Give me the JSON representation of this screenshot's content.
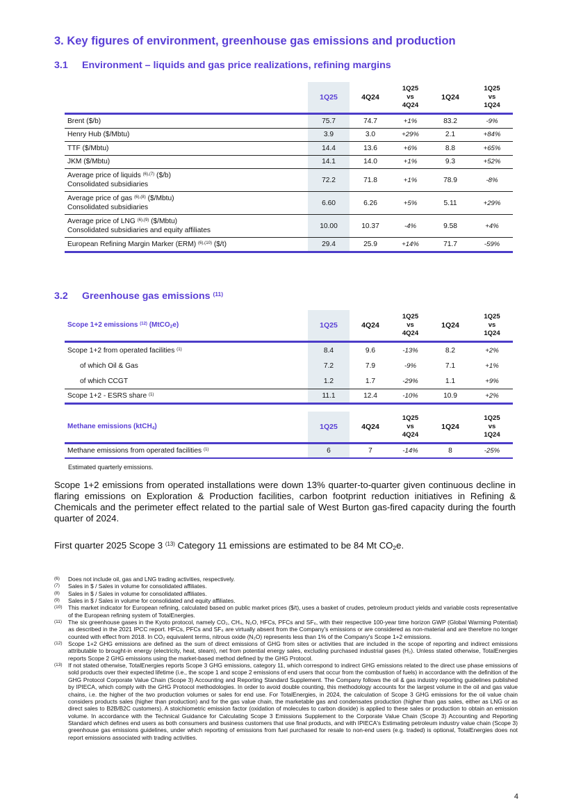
{
  "section3": {
    "title": "3.  Key figures of environment, greenhouse gas emissions and production"
  },
  "section31": {
    "num": "3.1",
    "title": "Environment – liquids and gas price realizations, refining margins"
  },
  "table1": {
    "headers": [
      "1Q25",
      "4Q24",
      "1Q25",
      "vs",
      "4Q24",
      "1Q24",
      "1Q25",
      "vs",
      "1Q24"
    ],
    "rows": [
      {
        "label": "Brent ($/b)",
        "sup": "",
        "unit": "",
        "sub": "",
        "v": [
          "75.7",
          "74.7",
          "+1%",
          "83.2",
          "-9%"
        ]
      },
      {
        "label": "Henry Hub ($/Mbtu)",
        "sup": "",
        "unit": "",
        "sub": "",
        "v": [
          "3.9",
          "3.0",
          "+29%",
          "2.1",
          "+84%"
        ]
      },
      {
        "label": "TTF ($/Mbtu)",
        "sup": "",
        "unit": "",
        "sub": "",
        "v": [
          "14.4",
          "13.6",
          "+6%",
          "8.8",
          "+65%"
        ]
      },
      {
        "label": "JKM ($/Mbtu)",
        "sup": "",
        "unit": "",
        "sub": "",
        "v": [
          "14.1",
          "14.0",
          "+1%",
          "9.3",
          "+52%"
        ]
      },
      {
        "label": "Average price of liquids",
        "sup": "(6),(7)",
        "unit": "($/b)",
        "sub": "Consolidated subsidiaries",
        "v": [
          "72.2",
          "71.8",
          "+1%",
          "78.9",
          "-8%"
        ]
      },
      {
        "label": "Average price of gas",
        "sup": "(6),(8)",
        "unit": "($/Mbtu)",
        "sub": "Consolidated subsidiaries",
        "v": [
          "6.60",
          "6.26",
          "+5%",
          "5.11",
          "+29%"
        ]
      },
      {
        "label": "Average price of LNG",
        "sup": "(6),(9)",
        "unit": "($/Mbtu)",
        "sub": "Consolidated subsidiaries and equity affiliates",
        "v": [
          "10.00",
          "10.37",
          "-4%",
          "9.58",
          "+4%"
        ]
      },
      {
        "label": "European Refining Margin Marker (ERM)",
        "sup": "(6),(10)",
        "unit": "($/t)",
        "sub": "",
        "v": [
          "29.4",
          "25.9",
          "+14%",
          "71.7",
          "-59%"
        ]
      }
    ]
  },
  "section32": {
    "num": "3.2",
    "title": "Greenhouse gas emissions",
    "sup": "(11)"
  },
  "table2": {
    "title": "Scope 1+2 emissions",
    "title_sup": "(12)",
    "title_unit_a": "(MtCO",
    "title_unit_sub": "2",
    "title_unit_b": "e)",
    "headers": [
      "1Q25",
      "4Q24",
      "1Q25",
      "vs",
      "4Q24",
      "1Q24",
      "1Q25",
      "vs",
      "1Q24"
    ],
    "rows": [
      {
        "label": "Scope 1+2 from operated facilities",
        "sup": "(1)",
        "v": [
          "8.4",
          "9.6",
          "-13%",
          "8.2",
          "+2%"
        ]
      },
      {
        "label": "of which Oil & Gas",
        "sup": "",
        "v": [
          "7.2",
          "7.9",
          "-9%",
          "7.1",
          "+1%"
        ]
      },
      {
        "label": "of which CCGT",
        "sup": "",
        "v": [
          "1.2",
          "1.7",
          "-29%",
          "1.1",
          "+9%"
        ]
      },
      {
        "label": "Scope 1+2 - ESRS share",
        "sup": "(1)",
        "v": [
          "11.1",
          "12.4",
          "-10%",
          "10.9",
          "+2%"
        ]
      }
    ]
  },
  "table3": {
    "title_a": "Methane emissions (ktCH",
    "title_sub": "4",
    "title_b": ")",
    "headers": [
      "1Q25",
      "4Q24",
      "1Q25",
      "vs",
      "4Q24",
      "1Q24",
      "1Q25",
      "vs",
      "1Q24"
    ],
    "rows": [
      {
        "label": "Methane emissions from operated facilities",
        "sup": "(1)",
        "v": [
          "6",
          "7",
          "-14%",
          "8",
          "-25%"
        ]
      }
    ],
    "note": "Estimated quarterly emissions."
  },
  "paragraph1": "Scope 1+2 emissions from operated installations were down 13% quarter-to-quarter given continuous decline in flaring emissions on Exploration & Production facilities, carbon footprint reduction initiatives in Refining & Chemicals and the perimeter effect related to the partial sale of West Burton gas-fired capacity during the fourth quarter of 2024.",
  "paragraph2": {
    "a": "First quarter 2025 Scope 3",
    "sup": "(13)",
    "b": "Category 11 emissions are estimated to be 84 Mt CO",
    "sub": "2",
    "c": "e."
  },
  "footnotes": [
    {
      "n": "(6)",
      "t": "Does not include oil, gas and LNG trading activities, respectively."
    },
    {
      "n": "(7)",
      "t": "Sales in $ / Sales in volume for consolidated affiliates."
    },
    {
      "n": "(8)",
      "t": "Sales in $ / Sales in volume for consolidated affiliates."
    },
    {
      "n": "(9)",
      "t": "Sales in $ / Sales in volume for consolidated and equity affiliates."
    },
    {
      "n": "(10)",
      "t": "This market indicator for European refining, calculated based on public market prices ($/t), uses a basket of crudes, petroleum product yields and variable costs representative of the European refining system of TotalEnergies."
    },
    {
      "n": "(11)",
      "t": "The six greenhouse gases in the Kyoto protocol, namely CO₂, CH₄, N₂O, HFCs, PFCs and SF₆, with their respective 100-year time horizon GWP (Global Warming Potential) as described in the 2021 IPCC report. HFCs, PFCs and SF₆ are virtually absent from the Company's emissions or are considered as non-material and are therefore no longer counted with effect from 2018. In CO₂ equivalent terms, nitrous oxide (N₂O) represents less than 1% of the Company's Scope 1+2 emissions."
    },
    {
      "n": "(12)",
      "t": "Scope 1+2 GHG emissions are defined as the sum of direct emissions of GHG from sites or activities that are included in the scope of reporting and indirect emissions attributable to brought-in energy (electricity, heat, steam), net from potential energy sales, excluding purchased industrial gases (H₂). Unless stated otherwise, TotalEnergies reports Scope 2 GHG emissions using the market-based method defined by the GHG Protocol."
    },
    {
      "n": "(13)",
      "t": "If not stated otherwise, TotalEnergies reports Scope 3 GHG emissions, category 11, which correspond to indirect GHG emissions related to the direct use phase emissions of sold products over their expected lifetime (i.e., the scope 1 and scope 2 emissions of end users that occur from the combustion of fuels) in accordance with the definition of the GHG Protocol Corporate Value Chain (Scope 3) Accounting and Reporting Standard Supplement. The Company follows the oil & gas industry reporting guidelines published by IPIECA, which comply with the GHG Protocol methodologies. In order to avoid double counting, this methodology accounts for the largest volume in the oil and gas value chains, i.e. the higher of the two production volumes or sales for end use. For TotalEnergies, in 2024, the calculation of Scope 3 GHG emissions for the oil value chain considers products sales (higher than production) and for the gas value chain, the marketable gas and condensates production (higher than gas sales, either as LNG or as direct sales to B2B/B2C customers). A stoichiometric emission factor (oxidation of molecules to carbon dioxide) is applied to these sales or production to obtain an emission volume. In accordance with the Technical Guidance for Calculating Scope 3 Emissions Supplement to the Corporate Value Chain (Scope 3) Accounting and Reporting Standard which defines end users as both consumers and business customers that use final products, and with IPIECA's Estimating petroleum industry value chain (Scope 3) greenhouse gas emissions guidelines, under which reporting of emissions from fuel purchased for resale to non-end users (e.g. traded) is optional, TotalEnergies does not report emissions associated with trading activities."
    }
  ],
  "page_number": "4",
  "colors": {
    "accent": "#5a3fd6",
    "rule": "#4b3cc8",
    "highlight": "#e5ecf1"
  }
}
